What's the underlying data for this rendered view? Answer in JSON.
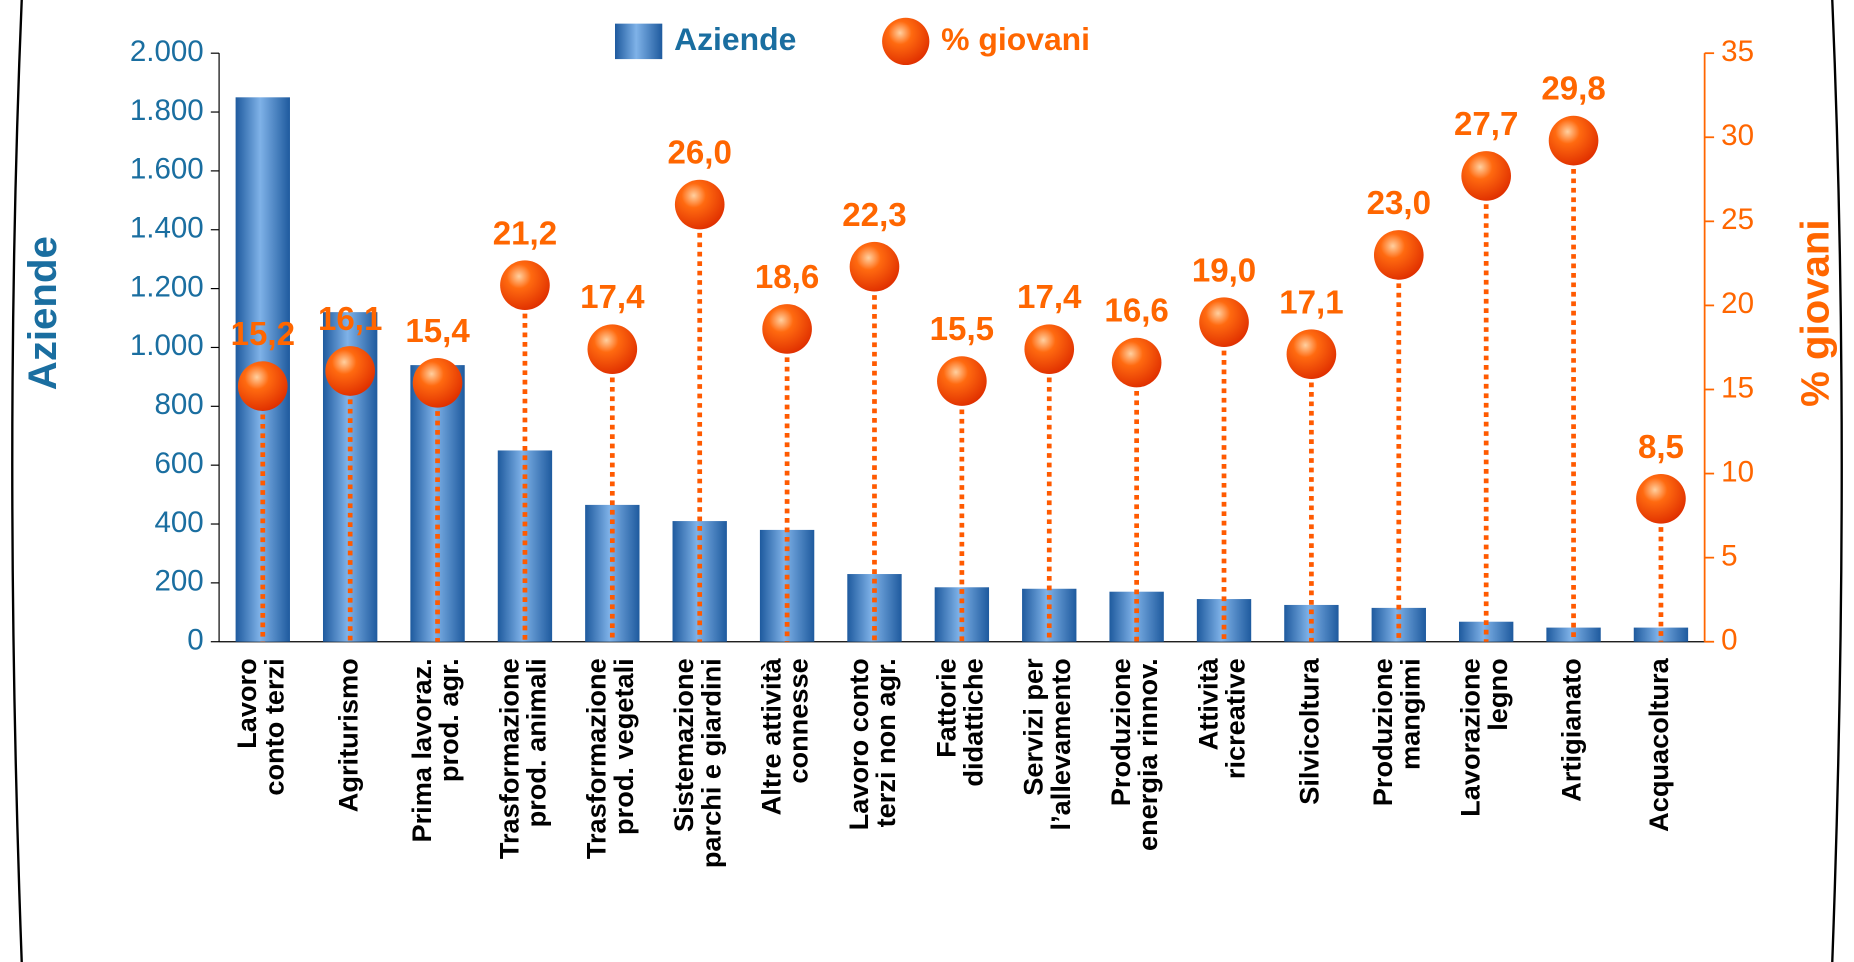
{
  "chart_data": {
    "type": "bar_dot",
    "y_label": "Aziende",
    "y2_label": "% giovani",
    "categories": [
      "Lavoro\nconto terzi",
      "Agriturismo",
      "Prima lavoraz.\nprod. agr.",
      "Trasformazione\nprod. animali",
      "Trasformazione\nprod. vegetali",
      "Sistemazione\nparchi e giardini",
      "Altre attività\nconnesse",
      "Lavoro conto\nterzi non agr.",
      "Fattorie\ndidattiche",
      "Servizi per\nl’allevamento",
      "Produzione\nenergia rinnov.",
      "Attività\nricreative",
      "Silvicoltura",
      "Produzione\nmangimi",
      "Lavorazione\nlegno",
      "Artigianato",
      "Acquacoltura"
    ],
    "series": [
      {
        "name": "Aziende",
        "color": "#3a78c0",
        "values": [
          1850,
          1120,
          940,
          650,
          465,
          410,
          380,
          230,
          185,
          180,
          170,
          145,
          125,
          115,
          68,
          48,
          48
        ]
      },
      {
        "name": "% giovani",
        "color": "#ff5a00",
        "axis": "y2",
        "values": [
          15.2,
          16.1,
          15.4,
          21.2,
          17.4,
          26.0,
          18.6,
          22.3,
          15.5,
          17.4,
          16.6,
          19.0,
          17.1,
          23.0,
          27.7,
          29.8,
          8.5
        ],
        "value_labels": [
          "15,2",
          "16,1",
          "15,4",
          "21,2",
          "17,4",
          "26,0",
          "18,6",
          "22,3",
          "15,5",
          "17,4",
          "16,6",
          "19,0",
          "17,1",
          "23,0",
          "27,7",
          "29,8",
          "8,5"
        ]
      }
    ],
    "ylim": [
      0,
      2000
    ],
    "yticks": [
      0,
      200,
      400,
      600,
      800,
      {
        "value": 1000,
        "label": "1.000"
      },
      {
        "value": 1200,
        "label": "1.200"
      },
      {
        "value": 1400,
        "label": "1.400"
      },
      {
        "value": 1600,
        "label": "1.600"
      },
      {
        "value": 1800,
        "label": "1.800"
      },
      {
        "value": 2000,
        "label": "2.000"
      }
    ],
    "y2lim": [
      0,
      35
    ],
    "y2ticks": [
      0,
      5,
      10,
      15,
      20,
      25,
      30,
      35
    ]
  }
}
